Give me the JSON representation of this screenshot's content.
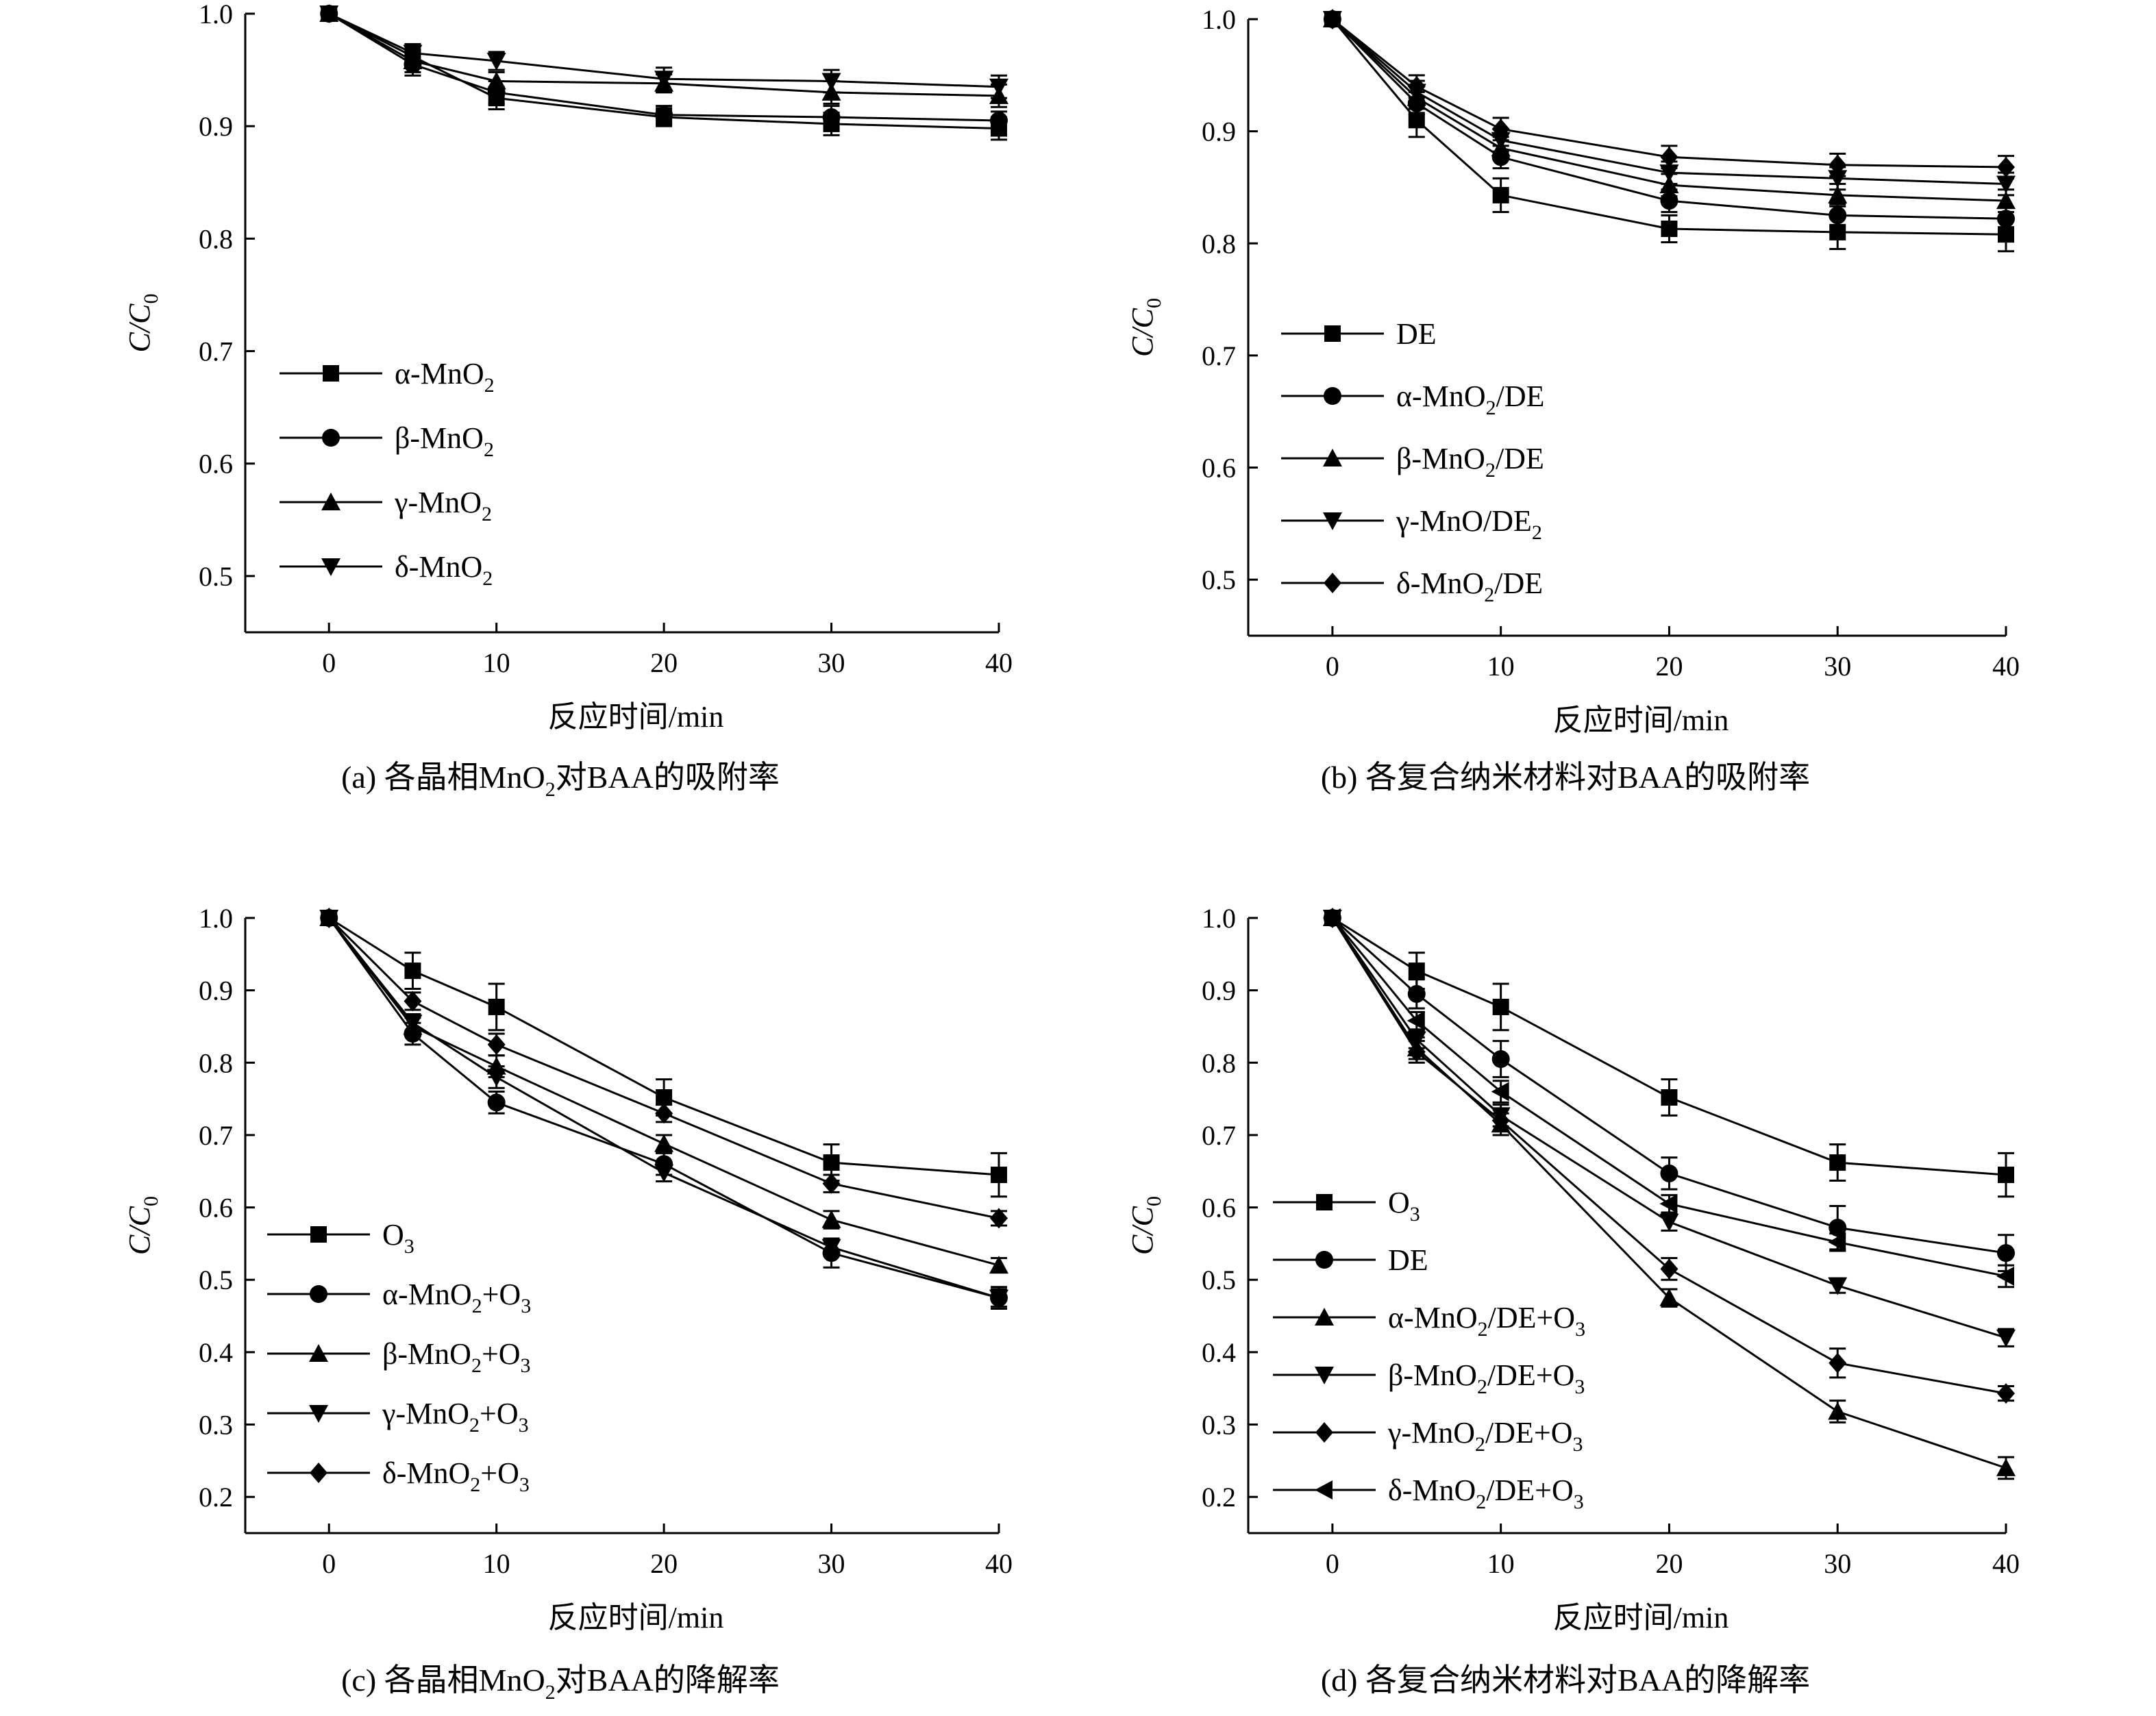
{
  "chart_data": [
    {
      "id": "a",
      "type": "line",
      "caption": {
        "prefix": "(a) 各晶相MnO",
        "sub": "2",
        "suffix": "对BAA的吸附率"
      },
      "xlabel": "反应时间/min",
      "ylabel": {
        "main": "C/C",
        "sub": "0"
      },
      "xlim": [
        -5,
        40
      ],
      "ylim": [
        0.45,
        1.0
      ],
      "xticks": [
        0,
        10,
        20,
        30,
        40
      ],
      "yticks": [
        0.5,
        0.6,
        0.7,
        0.8,
        0.9,
        1.0
      ],
      "x": [
        0,
        5,
        10,
        20,
        30,
        40
      ],
      "series": [
        {
          "marker": "square",
          "legend": [
            {
              "t": "α-MnO"
            },
            {
              "t": "2",
              "sub": true
            }
          ],
          "values": [
            1.0,
            0.962,
            0.925,
            0.908,
            0.902,
            0.898
          ],
          "err": [
            0,
            0.01,
            0.01,
            0.008,
            0.01,
            0.01
          ]
        },
        {
          "marker": "circle",
          "legend": [
            {
              "t": "β-MnO"
            },
            {
              "t": "2",
              "sub": true
            }
          ],
          "values": [
            1.0,
            0.955,
            0.93,
            0.91,
            0.908,
            0.905
          ],
          "err": [
            0,
            0.01,
            0.01,
            0.008,
            0.01,
            0.008
          ]
        },
        {
          "marker": "triangle",
          "legend": [
            {
              "t": "γ-MnO"
            },
            {
              "t": "2",
              "sub": true
            }
          ],
          "values": [
            1.0,
            0.958,
            0.94,
            0.938,
            0.93,
            0.927
          ],
          "err": [
            0,
            0.01,
            0.008,
            0.008,
            0.01,
            0.01
          ]
        },
        {
          "marker": "tri-down",
          "legend": [
            {
              "t": "δ-MnO"
            },
            {
              "t": "2",
              "sub": true
            }
          ],
          "values": [
            1.0,
            0.965,
            0.958,
            0.942,
            0.94,
            0.935
          ],
          "err": [
            0,
            0.008,
            0.008,
            0.01,
            0.01,
            0.01
          ]
        }
      ]
    },
    {
      "id": "b",
      "type": "line",
      "caption": {
        "prefix": "(b) 各复合纳米材料对BAA的吸附率",
        "sub": "",
        "suffix": ""
      },
      "xlabel": "反应时间/min",
      "ylabel": {
        "main": "C/C",
        "sub": "0"
      },
      "xlim": [
        -5,
        40
      ],
      "ylim": [
        0.45,
        1.0
      ],
      "xticks": [
        0,
        10,
        20,
        30,
        40
      ],
      "yticks": [
        0.5,
        0.6,
        0.7,
        0.8,
        0.9,
        1.0
      ],
      "x": [
        0,
        5,
        10,
        20,
        30,
        40
      ],
      "series": [
        {
          "marker": "square",
          "legend": [
            {
              "t": "DE"
            }
          ],
          "values": [
            1.0,
            0.91,
            0.843,
            0.813,
            0.81,
            0.808
          ],
          "err": [
            0,
            0.015,
            0.015,
            0.012,
            0.015,
            0.015
          ]
        },
        {
          "marker": "circle",
          "legend": [
            {
              "t": "α-MnO"
            },
            {
              "t": "2",
              "sub": true
            },
            {
              "t": "/DE"
            }
          ],
          "values": [
            1.0,
            0.925,
            0.877,
            0.838,
            0.825,
            0.822
          ],
          "err": [
            0,
            0.01,
            0.01,
            0.01,
            0.01,
            0.01
          ]
        },
        {
          "marker": "triangle",
          "legend": [
            {
              "t": "β-MnO"
            },
            {
              "t": "2",
              "sub": true
            },
            {
              "t": "/DE"
            }
          ],
          "values": [
            1.0,
            0.93,
            0.885,
            0.852,
            0.843,
            0.838
          ],
          "err": [
            0,
            0.01,
            0.01,
            0.01,
            0.01,
            0.01
          ]
        },
        {
          "marker": "tri-down",
          "legend": [
            {
              "t": "γ-MnO/DE"
            },
            {
              "t": "2",
              "sub": true
            }
          ],
          "values": [
            1.0,
            0.935,
            0.892,
            0.863,
            0.858,
            0.853
          ],
          "err": [
            0,
            0.01,
            0.01,
            0.01,
            0.01,
            0.01
          ]
        },
        {
          "marker": "diamond",
          "legend": [
            {
              "t": "δ-MnO"
            },
            {
              "t": "2",
              "sub": true
            },
            {
              "t": "/DE"
            }
          ],
          "values": [
            1.0,
            0.94,
            0.902,
            0.877,
            0.87,
            0.868
          ],
          "err": [
            0,
            0.01,
            0.01,
            0.01,
            0.01,
            0.01
          ]
        }
      ]
    },
    {
      "id": "c",
      "type": "line",
      "caption": {
        "prefix": "(c) 各晶相MnO",
        "sub": "2",
        "suffix": "对BAA的降解率"
      },
      "xlabel": "反应时间/min",
      "ylabel": {
        "main": "C/C",
        "sub": "0"
      },
      "xlim": [
        -5,
        40
      ],
      "ylim": [
        0.15,
        1.0
      ],
      "xticks": [
        0,
        10,
        20,
        30,
        40
      ],
      "yticks": [
        0.2,
        0.3,
        0.4,
        0.5,
        0.6,
        0.7,
        0.8,
        0.9,
        1.0
      ],
      "x": [
        0,
        5,
        10,
        20,
        30,
        40
      ],
      "series": [
        {
          "marker": "square",
          "legend": [
            {
              "t": "O"
            },
            {
              "t": "3",
              "sub": true
            }
          ],
          "values": [
            1.0,
            0.927,
            0.877,
            0.752,
            0.662,
            0.645
          ],
          "err": [
            0,
            0.025,
            0.032,
            0.025,
            0.025,
            0.03
          ]
        },
        {
          "marker": "circle",
          "legend": [
            {
              "t": "α-MnO"
            },
            {
              "t": "2",
              "sub": true
            },
            {
              "t": "+O"
            },
            {
              "t": "3",
              "sub": true
            }
          ],
          "values": [
            1.0,
            0.84,
            0.745,
            0.66,
            0.537,
            0.475
          ],
          "err": [
            0,
            0.015,
            0.015,
            0.015,
            0.02,
            0.015
          ]
        },
        {
          "marker": "triangle",
          "legend": [
            {
              "t": "β-MnO"
            },
            {
              "t": "2",
              "sub": true
            },
            {
              "t": "+O"
            },
            {
              "t": "3",
              "sub": true
            }
          ],
          "values": [
            1.0,
            0.85,
            0.795,
            0.688,
            0.583,
            0.52
          ],
          "err": [
            0,
            0.012,
            0.015,
            0.012,
            0.012,
            0.01
          ]
        },
        {
          "marker": "tri-down",
          "legend": [
            {
              "t": "γ-MnO"
            },
            {
              "t": "2",
              "sub": true
            },
            {
              "t": "+O"
            },
            {
              "t": "3",
              "sub": true
            }
          ],
          "values": [
            1.0,
            0.855,
            0.78,
            0.648,
            0.545,
            0.475
          ],
          "err": [
            0,
            0.012,
            0.015,
            0.012,
            0.012,
            0.012
          ]
        },
        {
          "marker": "diamond",
          "legend": [
            {
              "t": "δ-MnO"
            },
            {
              "t": "2",
              "sub": true
            },
            {
              "t": "+O"
            },
            {
              "t": "3",
              "sub": true
            }
          ],
          "values": [
            1.0,
            0.885,
            0.825,
            0.73,
            0.633,
            0.585
          ],
          "err": [
            0,
            0.012,
            0.015,
            0.012,
            0.012,
            0.01
          ]
        }
      ]
    },
    {
      "id": "d",
      "type": "line",
      "caption": {
        "prefix": "(d) 各复合纳米材料对BAA的降解率",
        "sub": "",
        "suffix": ""
      },
      "xlabel": "反应时间/min",
      "ylabel": {
        "main": "C/C",
        "sub": "0"
      },
      "xlim": [
        -5,
        40
      ],
      "ylim": [
        0.15,
        1.0
      ],
      "xticks": [
        0,
        10,
        20,
        30,
        40
      ],
      "yticks": [
        0.2,
        0.3,
        0.4,
        0.5,
        0.6,
        0.7,
        0.8,
        0.9,
        1.0
      ],
      "x": [
        0,
        5,
        10,
        20,
        30,
        40
      ],
      "series": [
        {
          "marker": "square",
          "legend": [
            {
              "t": "O"
            },
            {
              "t": "3",
              "sub": true
            }
          ],
          "values": [
            1.0,
            0.927,
            0.877,
            0.752,
            0.662,
            0.645
          ],
          "err": [
            0,
            0.025,
            0.032,
            0.025,
            0.025,
            0.03
          ]
        },
        {
          "marker": "circle",
          "legend": [
            {
              "t": "DE"
            }
          ],
          "values": [
            1.0,
            0.895,
            0.805,
            0.647,
            0.572,
            0.537
          ],
          "err": [
            0,
            0.02,
            0.025,
            0.022,
            0.03,
            0.025
          ]
        },
        {
          "marker": "triangle",
          "legend": [
            {
              "t": "α-MnO"
            },
            {
              "t": "2",
              "sub": true
            },
            {
              "t": "/DE+O"
            },
            {
              "t": "3",
              "sub": true
            }
          ],
          "values": [
            1.0,
            0.82,
            0.715,
            0.475,
            0.318,
            0.24
          ],
          "err": [
            0,
            0.015,
            0.015,
            0.012,
            0.015,
            0.015
          ]
        },
        {
          "marker": "tri-down",
          "legend": [
            {
              "t": "β-MnO"
            },
            {
              "t": "2",
              "sub": true
            },
            {
              "t": "/DE+O"
            },
            {
              "t": "3",
              "sub": true
            }
          ],
          "values": [
            1.0,
            0.832,
            0.727,
            0.58,
            0.492,
            0.42
          ],
          "err": [
            0,
            0.012,
            0.015,
            0.012,
            0.01,
            0.012
          ]
        },
        {
          "marker": "diamond",
          "legend": [
            {
              "t": "γ-MnO"
            },
            {
              "t": "2",
              "sub": true
            },
            {
              "t": "/DE+O"
            },
            {
              "t": "3",
              "sub": true
            }
          ],
          "values": [
            1.0,
            0.815,
            0.72,
            0.515,
            0.385,
            0.343
          ],
          "err": [
            0,
            0.015,
            0.015,
            0.015,
            0.02,
            0.01
          ]
        },
        {
          "marker": "tri-left",
          "legend": [
            {
              "t": "δ-MnO"
            },
            {
              "t": "2",
              "sub": true
            },
            {
              "t": "/DE+O"
            },
            {
              "t": "3",
              "sub": true
            }
          ],
          "values": [
            1.0,
            0.858,
            0.76,
            0.605,
            0.552,
            0.505
          ],
          "err": [
            0,
            0.012,
            0.015,
            0.012,
            0.012,
            0.015
          ]
        }
      ]
    }
  ]
}
